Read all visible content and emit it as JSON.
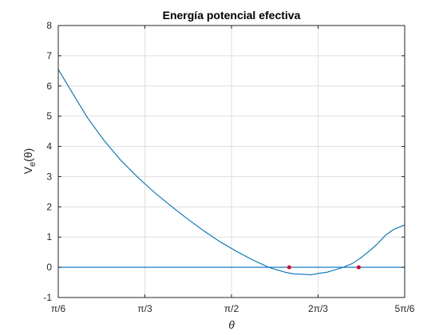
{
  "chart_data": {
    "type": "line",
    "title": "Energía potencial efectiva",
    "xlabel": "θ",
    "ylabel_main": "V",
    "ylabel_sub": "e",
    "ylabel_arg": "(θ)",
    "xlim": [
      0.5236,
      2.618
    ],
    "ylim": [
      -1,
      8
    ],
    "grid": true,
    "x_ticks": [
      {
        "value": 0.5236,
        "label": "π/6"
      },
      {
        "value": 1.0472,
        "label": "π/3"
      },
      {
        "value": 1.5708,
        "label": "π/2"
      },
      {
        "value": 2.0944,
        "label": "2π/3"
      },
      {
        "value": 2.618,
        "label": "5π/6"
      }
    ],
    "y_ticks": [
      {
        "value": -1,
        "label": "-1"
      },
      {
        "value": 0,
        "label": "0"
      },
      {
        "value": 1,
        "label": "1"
      },
      {
        "value": 2,
        "label": "2"
      },
      {
        "value": 3,
        "label": "3"
      },
      {
        "value": 4,
        "label": "4"
      },
      {
        "value": 5,
        "label": "5"
      },
      {
        "value": 6,
        "label": "6"
      },
      {
        "value": 7,
        "label": "7"
      },
      {
        "value": 8,
        "label": "8"
      }
    ],
    "series": [
      {
        "color": "#0072bd",
        "x": [
          0.5236,
          0.6,
          0.7,
          0.8,
          0.9,
          1.0,
          1.1,
          1.2,
          1.3,
          1.4,
          1.5,
          1.6,
          1.7,
          1.8,
          1.9,
          1.95,
          2.0,
          2.05,
          2.1,
          2.15,
          2.2,
          2.25,
          2.3,
          2.35,
          2.4,
          2.45,
          2.5,
          2.55,
          2.618
        ],
        "y": [
          6.55,
          5.85,
          4.95,
          4.2,
          3.55,
          3.0,
          2.5,
          2.05,
          1.62,
          1.22,
          0.85,
          0.53,
          0.24,
          -0.01,
          -0.17,
          -0.22,
          -0.23,
          -0.25,
          -0.2,
          -0.16,
          -0.08,
          0.01,
          0.12,
          0.3,
          0.52,
          0.76,
          1.05,
          1.25,
          1.4
        ]
      },
      {
        "color": "#0072bd",
        "x": [
          0.5236,
          2.618
        ],
        "y": [
          0,
          0
        ]
      }
    ],
    "markers": {
      "color": "#d9002b",
      "points": [
        {
          "x": 1.92,
          "y": 0
        },
        {
          "x": 2.34,
          "y": 0
        }
      ]
    }
  }
}
